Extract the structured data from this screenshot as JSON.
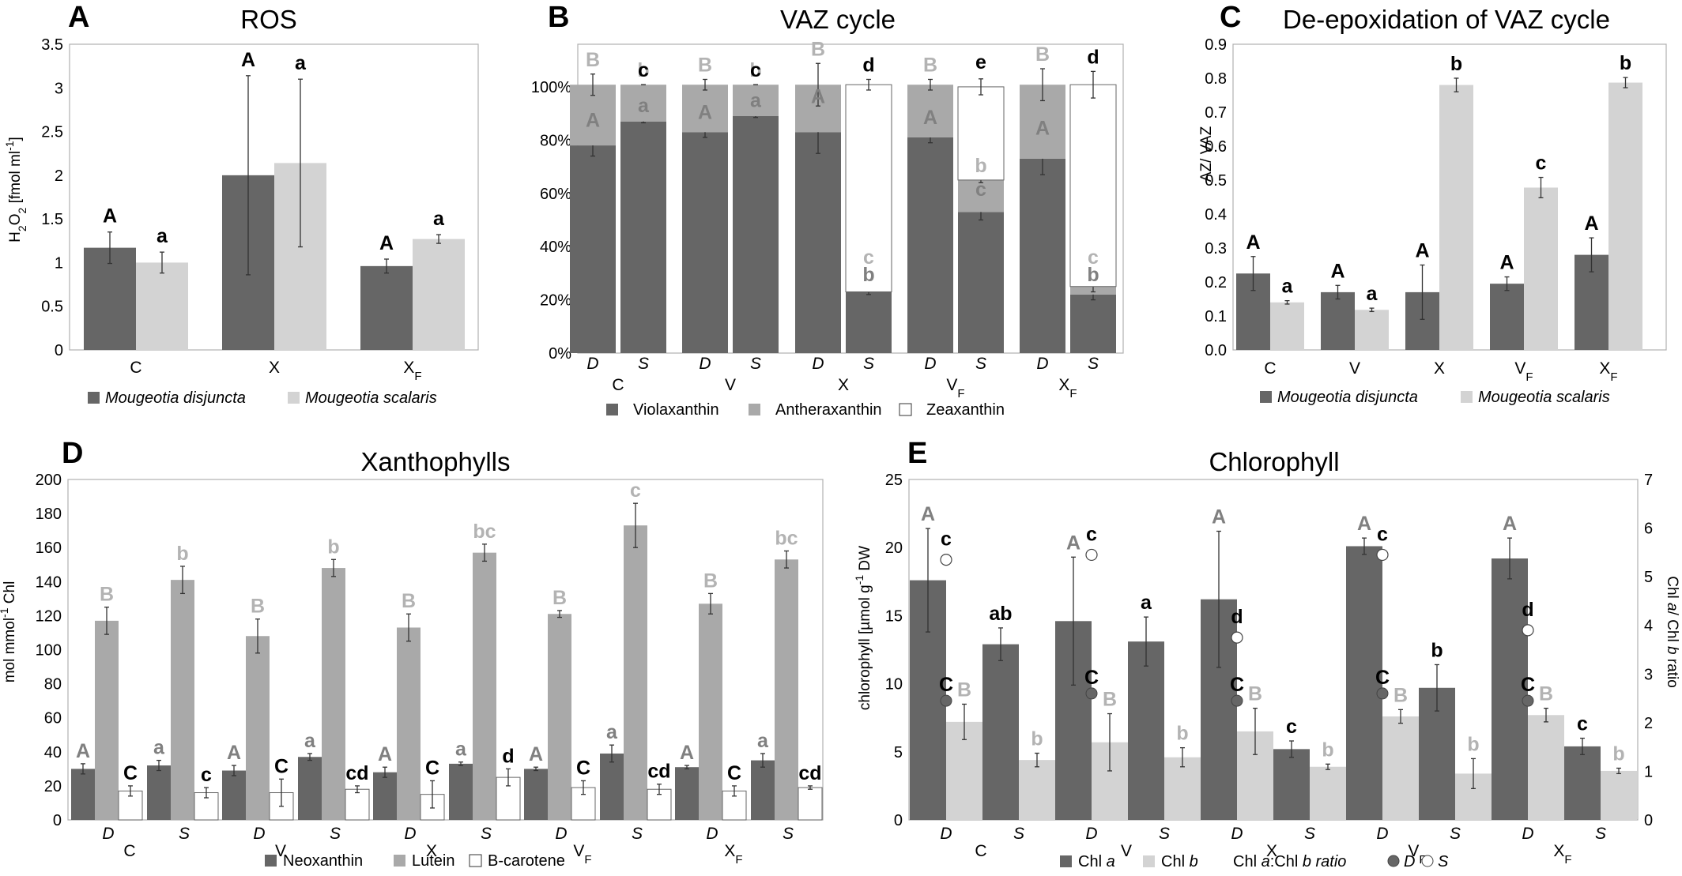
{
  "colors": {
    "dark": "#666666",
    "mid": "#a9a9a9",
    "light": "#d3d3d3",
    "white": "#ffffff",
    "frame": "#b0b0b0",
    "darkText": "#000000",
    "greyText": "#808080",
    "lightText": "#b3b3b3"
  },
  "chart_data": [
    {
      "panel": "A",
      "title": "ROS",
      "type": "bar",
      "ylabel": "H2O2 [fmol ml-1]",
      "ylim": [
        0,
        3.5
      ],
      "yticks": [
        "0",
        "0.5",
        "1",
        "1.5",
        "2",
        "2.5",
        "3",
        "3.5"
      ],
      "categories": [
        "C",
        "X",
        "XF"
      ],
      "series": [
        {
          "name": "Mougeotia disjuncta",
          "values": [
            1.17,
            2.0,
            0.96
          ],
          "err": [
            0.18,
            1.14,
            0.08
          ],
          "letters": [
            "A",
            "A",
            "A"
          ]
        },
        {
          "name": "Mougeotia scalaris",
          "values": [
            1.0,
            2.14,
            1.27
          ],
          "err": [
            0.12,
            0.96,
            0.05
          ],
          "letters": [
            "a",
            "a",
            "a"
          ]
        }
      ],
      "legend": [
        "Mougeotia disjuncta",
        "Mougeotia scalaris"
      ]
    },
    {
      "panel": "B",
      "title": "VAZ cycle",
      "type": "bar",
      "subtype": "stacked-percent",
      "yticks": [
        "0%",
        "20%",
        "40%",
        "60%",
        "80%",
        "100%"
      ],
      "groups": [
        "C",
        "V",
        "X",
        "VF",
        "XF"
      ],
      "subgroups": [
        "D",
        "S"
      ],
      "series": [
        {
          "name": "Violaxanthin",
          "values": [
            78,
            87,
            83,
            89,
            83,
            23,
            81,
            53,
            73,
            22
          ],
          "err": [
            4,
            0.5,
            2,
            0.5,
            8,
            1,
            2,
            3,
            6,
            2
          ]
        },
        {
          "name": "Antheraxanthin",
          "values": [
            23,
            14,
            18,
            12,
            18,
            0,
            20,
            12,
            28,
            3
          ],
          "err": [
            4,
            0,
            2,
            0,
            8,
            0,
            2,
            1,
            6,
            2
          ]
        },
        {
          "name": "Zeaxanthin",
          "values": [
            0,
            0,
            0,
            0,
            0,
            78,
            0,
            35,
            0,
            76
          ],
          "err": [
            0,
            0,
            0,
            0,
            0,
            2,
            0,
            3,
            0,
            5
          ]
        }
      ],
      "letters": [
        {
          "group": "C",
          "sub": "D",
          "v": "A",
          "a": "B"
        },
        {
          "group": "C",
          "sub": "S",
          "v": "a",
          "a": "b",
          "z": "c"
        },
        {
          "group": "V",
          "sub": "D",
          "v": "A",
          "a": "B"
        },
        {
          "group": "V",
          "sub": "S",
          "v": "a",
          "a": "b",
          "z": "c"
        },
        {
          "group": "X",
          "sub": "D",
          "v": "A",
          "a": "B"
        },
        {
          "group": "X",
          "sub": "S",
          "v": "b",
          "a": "c",
          "z": "d"
        },
        {
          "group": "VF",
          "sub": "D",
          "v": "A",
          "a": "B"
        },
        {
          "group": "VF",
          "sub": "S",
          "v": "c",
          "a": "b",
          "z": "e"
        },
        {
          "group": "XF",
          "sub": "D",
          "v": "A",
          "a": "B"
        },
        {
          "group": "XF",
          "sub": "S",
          "v": "b",
          "a": "c",
          "z": "d"
        }
      ],
      "legend": [
        "Violaxanthin",
        "Antheraxanthin",
        "Zeaxanthin"
      ]
    },
    {
      "panel": "C",
      "title": "De-epoxidation of VAZ cycle",
      "type": "bar",
      "ylabel": "AZ/ VAZ",
      "ylim": [
        0,
        0.9
      ],
      "yticks": [
        "0.0",
        "0.1",
        "0.2",
        "0.3",
        "0.4",
        "0.5",
        "0.6",
        "0.7",
        "0.8",
        "0.9"
      ],
      "categories": [
        "C",
        "V",
        "X",
        "VF",
        "XF"
      ],
      "series": [
        {
          "name": "Mougeotia disjuncta",
          "values": [
            0.225,
            0.17,
            0.17,
            0.195,
            0.28
          ],
          "err": [
            0.05,
            0.02,
            0.08,
            0.02,
            0.05
          ],
          "letters": [
            "A",
            "A",
            "A",
            "A",
            "A"
          ]
        },
        {
          "name": "Mougeotia scalaris",
          "values": [
            0.14,
            0.118,
            0.78,
            0.478,
            0.787
          ],
          "err": [
            0.005,
            0.005,
            0.02,
            0.03,
            0.015
          ],
          "letters": [
            "a",
            "a",
            "b",
            "c",
            "b"
          ]
        }
      ],
      "legend": [
        "Mougeotia disjuncta",
        "Mougeotia scalaris"
      ]
    },
    {
      "panel": "D",
      "title": "Xanthophylls",
      "type": "bar",
      "ylabel": "mol mmol-1 Chl",
      "ylim": [
        0,
        200
      ],
      "yticks": [
        "0",
        "20",
        "40",
        "60",
        "80",
        "100",
        "120",
        "140",
        "160",
        "180",
        "200"
      ],
      "groups": [
        "C",
        "V",
        "X",
        "VF",
        "XF"
      ],
      "subgroups": [
        "D",
        "S"
      ],
      "series": [
        {
          "name": "Neoxanthin",
          "values": [
            30,
            32,
            29,
            37,
            28,
            33,
            30,
            39,
            31,
            35
          ],
          "err": [
            3,
            3,
            3,
            2,
            3,
            1,
            1,
            5,
            1,
            4
          ],
          "letters": [
            "A",
            "a",
            "A",
            "a",
            "A",
            "a",
            "A",
            "a",
            "A",
            "a"
          ]
        },
        {
          "name": "Lutein",
          "values": [
            117,
            141,
            108,
            148,
            113,
            157,
            121,
            173,
            127,
            153
          ],
          "err": [
            8,
            8,
            10,
            5,
            8,
            5,
            2,
            13,
            6,
            5
          ],
          "letters": [
            "B",
            "b",
            "B",
            "b",
            "B",
            "bc",
            "B",
            "c",
            "B",
            "bc"
          ]
        },
        {
          "name": "B-carotene",
          "values": [
            17,
            16,
            16,
            18,
            15,
            25,
            19,
            18,
            17,
            19
          ],
          "err": [
            3,
            3,
            8,
            2,
            8,
            5,
            4,
            3,
            3,
            1
          ],
          "letters": [
            "C",
            "c",
            "C",
            "cd",
            "C",
            "d",
            "C",
            "cd",
            "C",
            "cd"
          ]
        }
      ],
      "legend": [
        "Neoxanthin",
        "Lutein",
        "B-carotene"
      ]
    },
    {
      "panel": "E",
      "title": "Chlorophyll",
      "type": "bar",
      "ylabel": "chlorophyll [µmol g-1 DW",
      "ylabel_right": "Chl a/ Chl b ratio",
      "ylim": [
        0,
        25
      ],
      "ylim_right": [
        0,
        7
      ],
      "yticks": [
        "0",
        "5",
        "10",
        "15",
        "20",
        "25"
      ],
      "yticks_right": [
        "0",
        "1",
        "2",
        "3",
        "4",
        "5",
        "6",
        "7"
      ],
      "groups": [
        "C",
        "V",
        "X",
        "VF",
        "XF"
      ],
      "subgroups": [
        "D",
        "S"
      ],
      "chl_a": {
        "values": [
          17.6,
          12.9,
          14.6,
          13.1,
          16.2,
          5.2,
          20.1,
          9.7,
          19.2,
          5.4
        ],
        "err": [
          3.8,
          1.2,
          4.7,
          1.8,
          5.0,
          0.6,
          0.6,
          1.7,
          1.5,
          0.6
        ],
        "letters": [
          "A",
          "ab",
          "A",
          "a",
          "A",
          "c",
          "A",
          "b",
          "A",
          "c"
        ]
      },
      "chl_b": {
        "values": [
          7.2,
          4.4,
          5.7,
          4.6,
          6.5,
          3.9,
          7.6,
          3.4,
          7.7,
          3.6
        ],
        "err": [
          1.3,
          0.5,
          2.1,
          0.7,
          1.7,
          0.2,
          0.5,
          1.1,
          0.5,
          0.2
        ],
        "letters": [
          "B",
          "b",
          "B",
          "b",
          "B",
          "b",
          "B",
          "b",
          "B",
          "b"
        ]
      },
      "ratio_D": {
        "values": [
          2.45,
          2.6,
          2.45,
          2.6,
          2.45
        ],
        "letter": "C"
      },
      "ratio_S": {
        "values": [
          5.35,
          5.45,
          3.75,
          5.45,
          3.9
        ],
        "letters": [
          "c",
          "c",
          "d",
          "c",
          "d"
        ]
      },
      "legend": [
        "Chl a",
        "Chl b",
        "Chl a:Chl b ratio",
        "D",
        "S"
      ]
    }
  ]
}
